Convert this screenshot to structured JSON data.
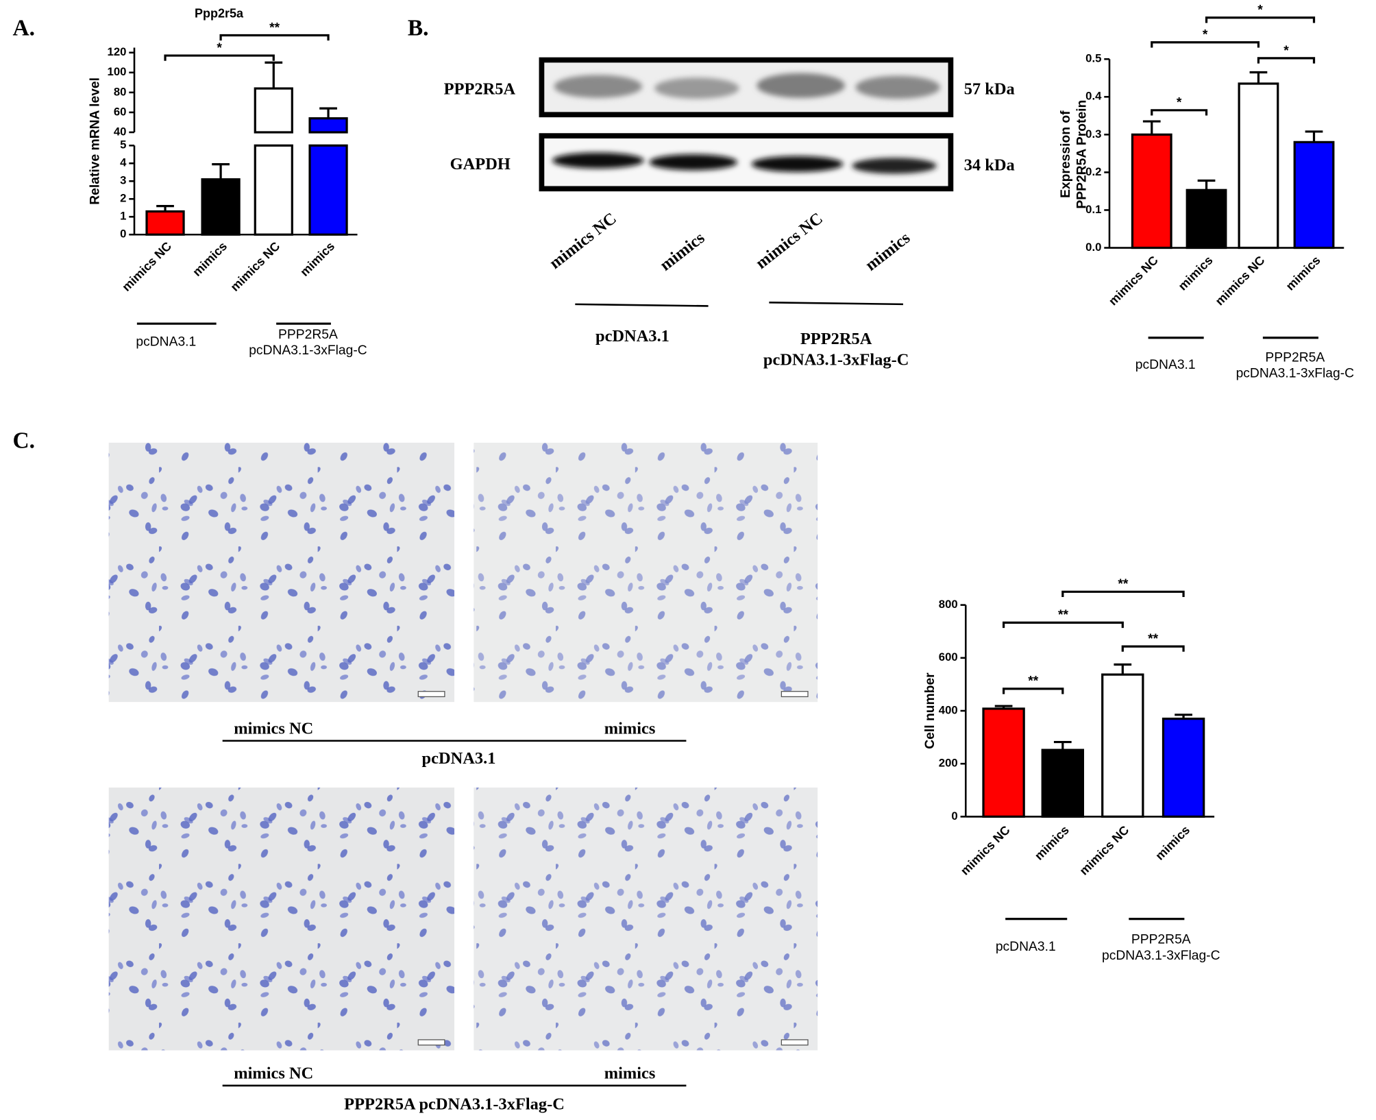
{
  "panel_labels": [
    "A.",
    "B.",
    "C."
  ],
  "chart_data": [
    {
      "type": "bar",
      "title": "Ppp2r5a",
      "ylabel": "Relative mRNA level",
      "categories": [
        "mimics NC",
        "mimics",
        "mimics NC",
        "mimics"
      ],
      "values": [
        1.3,
        3.1,
        84,
        54
      ],
      "errors": [
        0.3,
        0.85,
        26,
        10
      ],
      "colors": [
        "#ff0000",
        "#000000",
        "#ffffff",
        "#0000ff"
      ],
      "ylim_lower": [
        0,
        5
      ],
      "yticks_lower": [
        0,
        1,
        2,
        3,
        4,
        5
      ],
      "ylim_upper": [
        40,
        125
      ],
      "yticks_upper": [
        40,
        60,
        80,
        100,
        120
      ],
      "comparisons": [
        {
          "groups": [
            0,
            2
          ],
          "label": "*"
        },
        {
          "groups": [
            1,
            3
          ],
          "label": "**"
        }
      ],
      "groups": [
        [
          "pcDNA3.1"
        ],
        [
          "PPP2R5A",
          "pcDNA3.1-3xFlag-C"
        ]
      ]
    },
    {
      "type": "bar",
      "ylabel": [
        "Expression of",
        "PPP2R5A Protein"
      ],
      "categories": [
        "mimics NC",
        "mimics",
        "mimics NC",
        "mimics"
      ],
      "values": [
        0.3,
        0.153,
        0.435,
        0.28
      ],
      "errors": [
        0.035,
        0.025,
        0.03,
        0.028
      ],
      "colors": [
        "#ff0000",
        "#000000",
        "#ffffff",
        "#0000ff"
      ],
      "ylim": [
        0,
        0.5
      ],
      "yticks": [
        {
          "value": 0,
          "label": "0.0"
        },
        0.1,
        0.2,
        0.3,
        0.4,
        0.5
      ],
      "comparisons": [
        {
          "groups": [
            0,
            1
          ],
          "label": "*"
        },
        {
          "groups": [
            0,
            2
          ],
          "label": "*"
        },
        {
          "groups": [
            1,
            3
          ],
          "label": "*"
        },
        {
          "groups": [
            2,
            3
          ],
          "label": "*"
        }
      ],
      "groups": [
        [
          "pcDNA3.1"
        ],
        [
          "PPP2R5A",
          "pcDNA3.1-3xFlag-C"
        ]
      ]
    },
    {
      "type": "bar",
      "ylabel": "Cell number",
      "categories": [
        "mimics NC",
        "mimics",
        "mimics NC",
        "mimics"
      ],
      "values": [
        408,
        252,
        537,
        370
      ],
      "errors": [
        10,
        30,
        38,
        15
      ],
      "colors": [
        "#ff0000",
        "#000000",
        "#ffffff",
        "#0000ff"
      ],
      "ylim": [
        0,
        800
      ],
      "yticks": [
        0,
        200,
        400,
        600,
        800
      ],
      "comparisons": [
        {
          "groups": [
            0,
            1
          ],
          "label": "**"
        },
        {
          "groups": [
            0,
            2
          ],
          "label": "**"
        },
        {
          "groups": [
            1,
            3
          ],
          "label": "**"
        },
        {
          "groups": [
            2,
            3
          ],
          "label": "**"
        }
      ],
      "groups": [
        [
          "pcDNA3.1"
        ],
        [
          "PPP2R5A",
          "pcDNA3.1-3xFlag-C"
        ]
      ]
    }
  ],
  "blot": {
    "rows": [
      {
        "protein": "PPP2R5A",
        "size": "57 kDa"
      },
      {
        "protein": "GAPDH",
        "size": "34 kDa"
      }
    ],
    "lanes": [
      "mimics NC",
      "mimics",
      "mimics NC",
      "mimics"
    ],
    "groups": [
      [
        "pcDNA3.1"
      ],
      [
        "PPP2R5A",
        "pcDNA3.1-3xFlag-C"
      ]
    ]
  },
  "micrographs": {
    "rows": [
      {
        "labels": [
          "mimics NC",
          "mimics"
        ],
        "group": "pcDNA3.1"
      },
      {
        "labels": [
          "mimics NC",
          "mimics"
        ],
        "group": "PPP2R5A pcDNA3.1-3xFlag-C"
      }
    ]
  }
}
